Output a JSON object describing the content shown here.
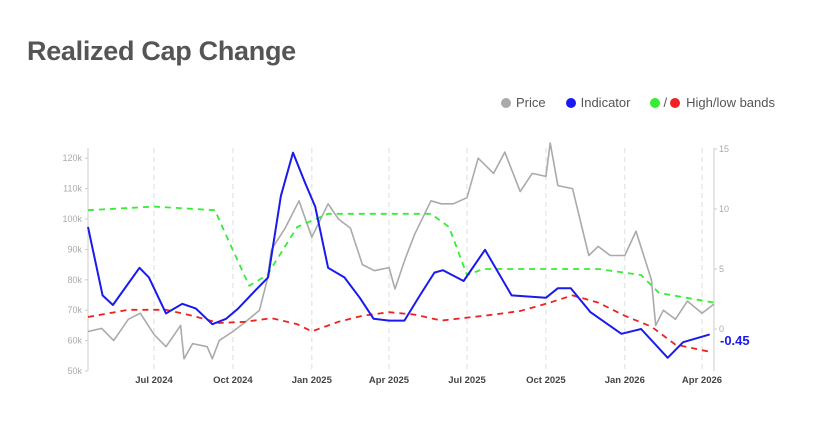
{
  "title": "Realized Cap Change",
  "legend": {
    "price": "Price",
    "indicator": "Indicator",
    "bands_sep": "/",
    "bands": "High/low bands"
  },
  "colors": {
    "price": "#aaaaaa",
    "indicator": "#1a1aee",
    "high_band": "#33ee33",
    "low_band": "#ee2222"
  },
  "chart_data": {
    "type": "line",
    "title": "Realized Cap Change",
    "x_ticks": [
      {
        "date": "2024-07-01",
        "label": "Jul 2024"
      },
      {
        "date": "2024-10-01",
        "label": "Oct 2024"
      },
      {
        "date": "2025-01-01",
        "label": "Jan 2025"
      },
      {
        "date": "2025-04-01",
        "label": "Apr 2025"
      },
      {
        "date": "2025-07-01",
        "label": "Jul 2025"
      },
      {
        "date": "2025-10-01",
        "label": "Oct 2025"
      },
      {
        "date": "2026-01-01",
        "label": "Jan 2026"
      },
      {
        "date": "2026-04-01",
        "label": "Apr 2026"
      }
    ],
    "xlim": [
      "2024-04-15",
      "2026-04-15"
    ],
    "y_left": {
      "ylim": [
        50000,
        125000
      ],
      "ticks": [
        {
          "v": 50000,
          "label": "50k"
        },
        {
          "v": 60000,
          "label": "60k"
        },
        {
          "v": 70000,
          "label": "70k"
        },
        {
          "v": 80000,
          "label": "80k"
        },
        {
          "v": 90000,
          "label": "90k"
        },
        {
          "v": 100000,
          "label": "100k"
        },
        {
          "v": 110000,
          "label": "110k"
        },
        {
          "v": 120000,
          "label": "120k"
        }
      ]
    },
    "y_right": {
      "ylim": [
        -3.5,
        15.5
      ],
      "ticks": [
        {
          "v": 0,
          "label": "0"
        },
        {
          "v": 5,
          "label": "5"
        },
        {
          "v": 10,
          "label": "10"
        },
        {
          "v": 15,
          "label": "15"
        }
      ]
    },
    "last_value_label": "-0.45",
    "grid": "vertical dashed",
    "legend_position": "top-right",
    "series": [
      {
        "name": "Price",
        "axis": "left",
        "points": [
          [
            "2024-04-15",
            63000
          ],
          [
            "2024-05-01",
            64000
          ],
          [
            "2024-05-15",
            60000
          ],
          [
            "2024-06-01",
            67000
          ],
          [
            "2024-06-15",
            69000
          ],
          [
            "2024-07-01",
            62000
          ],
          [
            "2024-07-15",
            58000
          ],
          [
            "2024-08-01",
            65000
          ],
          [
            "2024-08-05",
            54000
          ],
          [
            "2024-08-15",
            59000
          ],
          [
            "2024-09-01",
            58000
          ],
          [
            "2024-09-07",
            54000
          ],
          [
            "2024-09-15",
            60000
          ],
          [
            "2024-10-01",
            63000
          ],
          [
            "2024-10-15",
            66000
          ],
          [
            "2024-11-01",
            70000
          ],
          [
            "2024-11-10",
            80000
          ],
          [
            "2024-11-15",
            90000
          ],
          [
            "2024-12-01",
            97000
          ],
          [
            "2024-12-17",
            106000
          ],
          [
            "2025-01-01",
            94000
          ],
          [
            "2025-01-20",
            105000
          ],
          [
            "2025-02-01",
            100000
          ],
          [
            "2025-02-15",
            97000
          ],
          [
            "2025-03-01",
            85000
          ],
          [
            "2025-03-15",
            83000
          ],
          [
            "2025-04-01",
            84000
          ],
          [
            "2025-04-08",
            77000
          ],
          [
            "2025-04-20",
            87000
          ],
          [
            "2025-05-01",
            95000
          ],
          [
            "2025-05-20",
            106000
          ],
          [
            "2025-06-01",
            105000
          ],
          [
            "2025-06-15",
            105000
          ],
          [
            "2025-07-01",
            107000
          ],
          [
            "2025-07-14",
            120000
          ],
          [
            "2025-08-01",
            115000
          ],
          [
            "2025-08-14",
            122000
          ],
          [
            "2025-09-01",
            109000
          ],
          [
            "2025-09-15",
            115000
          ],
          [
            "2025-10-01",
            114000
          ],
          [
            "2025-10-06",
            125000
          ],
          [
            "2025-10-15",
            111000
          ],
          [
            "2025-11-01",
            110000
          ],
          [
            "2025-11-20",
            88000
          ],
          [
            "2025-12-01",
            91000
          ],
          [
            "2025-12-15",
            88000
          ],
          [
            "2026-01-01",
            88000
          ],
          [
            "2026-01-14",
            96000
          ],
          [
            "2026-02-01",
            80000
          ],
          [
            "2026-02-06",
            65000
          ],
          [
            "2026-02-15",
            70000
          ],
          [
            "2026-03-01",
            67000
          ],
          [
            "2026-03-15",
            73000
          ],
          [
            "2026-04-01",
            69000
          ],
          [
            "2026-04-15",
            72000
          ]
        ]
      },
      {
        "name": "Indicator",
        "axis": "right",
        "points": [
          [
            "2024-04-15",
            8.5
          ],
          [
            "2024-05-02",
            2.8
          ],
          [
            "2024-05-14",
            2.0
          ],
          [
            "2024-06-14",
            5.1
          ],
          [
            "2024-06-25",
            4.3
          ],
          [
            "2024-07-15",
            1.3
          ],
          [
            "2024-08-03",
            2.1
          ],
          [
            "2024-08-19",
            1.7
          ],
          [
            "2024-09-07",
            0.4
          ],
          [
            "2024-09-23",
            0.85
          ],
          [
            "2024-10-07",
            1.7
          ],
          [
            "2024-10-27",
            3.2
          ],
          [
            "2024-11-11",
            4.3
          ],
          [
            "2024-11-26",
            11.1
          ],
          [
            "2024-12-10",
            14.7
          ],
          [
            "2024-12-24",
            12.2
          ],
          [
            "2025-01-05",
            10.2
          ],
          [
            "2025-01-20",
            5.1
          ],
          [
            "2025-02-08",
            4.3
          ],
          [
            "2025-02-26",
            2.6
          ],
          [
            "2025-03-14",
            0.85
          ],
          [
            "2025-04-01",
            0.7
          ],
          [
            "2025-04-19",
            0.7
          ],
          [
            "2025-05-07",
            2.8
          ],
          [
            "2025-05-24",
            4.7
          ],
          [
            "2025-06-03",
            4.9
          ],
          [
            "2025-06-27",
            4.0
          ],
          [
            "2025-07-22",
            6.6
          ],
          [
            "2025-08-22",
            2.8
          ],
          [
            "2025-10-01",
            2.6
          ],
          [
            "2025-10-15",
            3.4
          ],
          [
            "2025-10-30",
            3.4
          ],
          [
            "2025-11-22",
            1.4
          ],
          [
            "2025-12-28",
            -0.4
          ],
          [
            "2026-01-20",
            0.0
          ],
          [
            "2026-02-20",
            -2.4
          ],
          [
            "2026-03-10",
            -1.1
          ],
          [
            "2026-04-10",
            -0.45
          ]
        ]
      },
      {
        "name": "High band",
        "axis": "right",
        "points": [
          [
            "2024-04-15",
            9.9
          ],
          [
            "2024-07-01",
            10.2
          ],
          [
            "2024-09-10",
            9.9
          ],
          [
            "2024-09-25",
            7.5
          ],
          [
            "2024-10-20",
            3.6
          ],
          [
            "2024-11-10",
            4.5
          ],
          [
            "2024-12-15",
            8.5
          ],
          [
            "2025-01-20",
            9.6
          ],
          [
            "2025-05-20",
            9.6
          ],
          [
            "2025-06-10",
            8.5
          ],
          [
            "2025-07-01",
            4.5
          ],
          [
            "2025-07-20",
            5.0
          ],
          [
            "2025-12-01",
            5.0
          ],
          [
            "2026-01-20",
            4.5
          ],
          [
            "2026-02-10",
            3.0
          ],
          [
            "2026-04-15",
            2.2
          ]
        ]
      },
      {
        "name": "Low band",
        "axis": "right",
        "points": [
          [
            "2024-04-15",
            1.0
          ],
          [
            "2024-06-01",
            1.6
          ],
          [
            "2024-07-15",
            1.6
          ],
          [
            "2024-08-15",
            1.1
          ],
          [
            "2024-09-15",
            0.5
          ],
          [
            "2024-10-15",
            0.6
          ],
          [
            "2024-11-15",
            0.9
          ],
          [
            "2024-12-15",
            0.4
          ],
          [
            "2025-01-01",
            -0.2
          ],
          [
            "2025-02-01",
            0.6
          ],
          [
            "2025-03-01",
            1.1
          ],
          [
            "2025-04-01",
            1.4
          ],
          [
            "2025-05-01",
            1.2
          ],
          [
            "2025-06-01",
            0.7
          ],
          [
            "2025-08-01",
            1.2
          ],
          [
            "2025-09-01",
            1.5
          ],
          [
            "2025-10-01",
            2.1
          ],
          [
            "2025-11-01",
            2.8
          ],
          [
            "2025-12-01",
            2.2
          ],
          [
            "2026-01-01",
            1.1
          ],
          [
            "2026-02-01",
            0.2
          ],
          [
            "2026-03-01",
            -1.3
          ],
          [
            "2026-04-10",
            -1.9
          ]
        ]
      }
    ]
  }
}
